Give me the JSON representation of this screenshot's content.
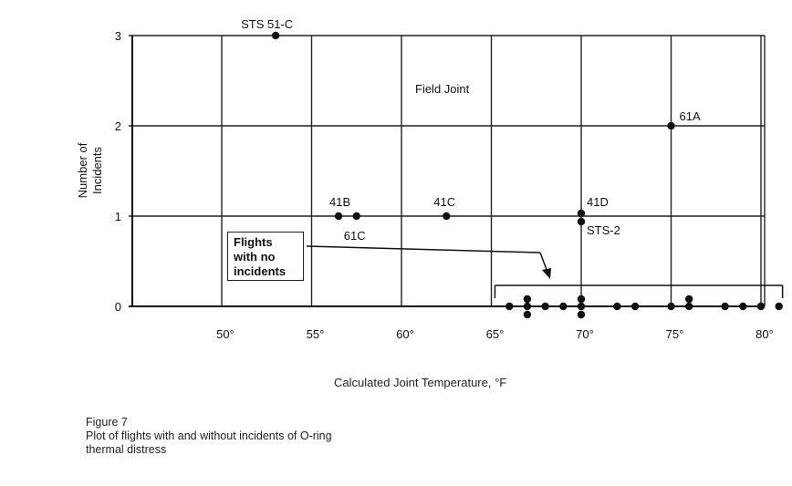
{
  "chart_data": {
    "type": "scatter",
    "title": "Field Joint",
    "xlabel": "Calculated Joint Temperature, °F",
    "ylabel": [
      "Number of",
      "Incidents"
    ],
    "xlim": [
      44,
      81
    ],
    "ylim": [
      0,
      3
    ],
    "xticks": [
      "50°",
      "55°",
      "60°",
      "65°",
      "70°",
      "75°",
      "80°"
    ],
    "yticks": [
      "0",
      "1",
      "2",
      "3"
    ],
    "grid": true,
    "points_with_incidents": [
      {
        "x": 53,
        "y": 3,
        "label": "STS 51-C"
      },
      {
        "x": 56.5,
        "y": 1,
        "label": "41B"
      },
      {
        "x": 57.5,
        "y": 1,
        "label": "61C"
      },
      {
        "x": 62.5,
        "y": 1,
        "label": "41C"
      },
      {
        "x": 70,
        "y": 1,
        "label": "41D"
      },
      {
        "x": 70,
        "y": 1,
        "label": "STS-2"
      },
      {
        "x": 75,
        "y": 2,
        "label": "61A"
      }
    ],
    "points_no_incidents": [
      {
        "x": 66,
        "y": 0
      },
      {
        "x": 67,
        "y": 0
      },
      {
        "x": 67,
        "y": 0
      },
      {
        "x": 67,
        "y": 0
      },
      {
        "x": 68,
        "y": 0
      },
      {
        "x": 69,
        "y": 0
      },
      {
        "x": 70,
        "y": 0
      },
      {
        "x": 70,
        "y": 0
      },
      {
        "x": 70,
        "y": 0
      },
      {
        "x": 72,
        "y": 0
      },
      {
        "x": 73,
        "y": 0
      },
      {
        "x": 75,
        "y": 0
      },
      {
        "x": 76,
        "y": 0
      },
      {
        "x": 76,
        "y": 0
      },
      {
        "x": 78,
        "y": 0
      },
      {
        "x": 79,
        "y": 0
      },
      {
        "x": 80,
        "y": 0
      },
      {
        "x": 81,
        "y": 0
      }
    ],
    "annotation": [
      "Flights",
      "with no",
      "incidents"
    ]
  },
  "caption": [
    "Figure 7",
    "Plot of flights with and without incidents of O-ring",
    "thermal distress"
  ]
}
